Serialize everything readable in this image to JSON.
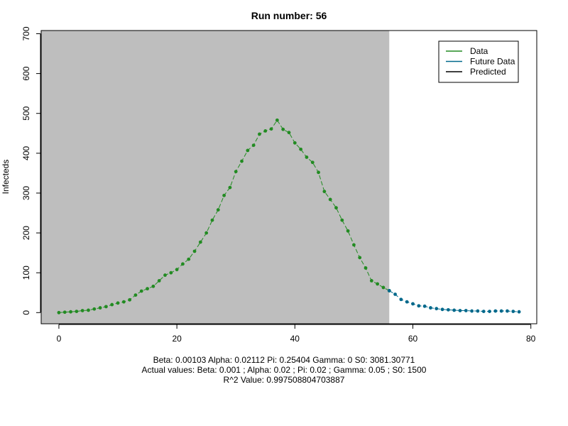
{
  "chart_data": {
    "type": "line",
    "title": "Run number:  56",
    "xlabel": "",
    "ylabel": "Infecteds",
    "xlim": [
      -3,
      81
    ],
    "ylim": [
      -28,
      708
    ],
    "x_ticks": [
      0,
      20,
      40,
      60,
      80
    ],
    "y_ticks": [
      0,
      100,
      200,
      300,
      400,
      500,
      600,
      700
    ],
    "shaded_region": {
      "x_from": -3,
      "x_to": 56,
      "color": "#bebebe"
    },
    "grid": false,
    "legend": {
      "placement": "top-right",
      "entries": [
        {
          "label": "Data",
          "color": "#228B22"
        },
        {
          "label": "Future Data",
          "color": "#00688B"
        },
        {
          "label": "Predicted",
          "color": "#000000"
        }
      ]
    },
    "series": [
      {
        "name": "Data",
        "color": "#228B22",
        "x": [
          0,
          1,
          2,
          3,
          4,
          5,
          6,
          7,
          8,
          9,
          10,
          11,
          12,
          13,
          14,
          15,
          16,
          17,
          18,
          19,
          20,
          21,
          22,
          23,
          24,
          25,
          26,
          27,
          28,
          29,
          30,
          31,
          32,
          33,
          34,
          35,
          36,
          37,
          38,
          39,
          40,
          41,
          42,
          43,
          44,
          45,
          46,
          47,
          48,
          49,
          50,
          51,
          52,
          53,
          54,
          55,
          56
        ],
        "y": [
          0,
          1,
          2,
          3,
          5,
          6,
          9,
          12,
          15,
          20,
          24,
          27,
          32,
          44,
          54,
          60,
          66,
          80,
          94,
          100,
          108,
          122,
          134,
          154,
          177,
          200,
          232,
          258,
          294,
          314,
          354,
          380,
          407,
          420,
          448,
          456,
          461,
          483,
          460,
          452,
          426,
          410,
          390,
          377,
          352,
          304,
          284,
          263,
          232,
          205,
          170,
          138,
          112,
          80,
          72,
          63,
          55
        ]
      },
      {
        "name": "Future Data",
        "color": "#00688B",
        "x": [
          56,
          57,
          58,
          59,
          60,
          61,
          62,
          63,
          64,
          65,
          66,
          67,
          68,
          69,
          70,
          71,
          72,
          73,
          74,
          75,
          76,
          77,
          78
        ],
        "y": [
          55,
          46,
          33,
          27,
          22,
          17,
          16,
          12,
          10,
          8,
          7,
          6,
          5,
          5,
          4,
          4,
          3,
          3,
          4,
          4,
          4,
          3,
          2
        ]
      }
    ]
  },
  "caption": {
    "line1": "Beta:  0.00103 Alpha:  0.02112 Pi:  0.25404 Gamma:  0 S0:  3081.30771",
    "line2": "Actual values: Beta:  0.001 ; Alpha:  0.02 ; Pi:  0.02 ; Gamma:  0.05 ; S0:  1500",
    "line3": "R^2 Value:  0.997508804703887"
  }
}
